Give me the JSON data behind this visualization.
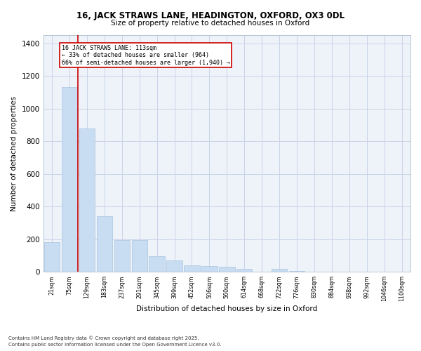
{
  "title1": "16, JACK STRAWS LANE, HEADINGTON, OXFORD, OX3 0DL",
  "title2": "Size of property relative to detached houses in Oxford",
  "xlabel": "Distribution of detached houses by size in Oxford",
  "ylabel": "Number of detached properties",
  "bar_color": "#c9ddf2",
  "bar_edge_color": "#a8c4e0",
  "grid_color": "#c8d4e8",
  "bg_color": "#eef3fa",
  "categories": [
    "21sqm",
    "75sqm",
    "129sqm",
    "183sqm",
    "237sqm",
    "291sqm",
    "345sqm",
    "399sqm",
    "452sqm",
    "506sqm",
    "560sqm",
    "614sqm",
    "668sqm",
    "722sqm",
    "776sqm",
    "830sqm",
    "884sqm",
    "938sqm",
    "992sqm",
    "1046sqm",
    "1100sqm"
  ],
  "values": [
    180,
    1130,
    880,
    340,
    195,
    195,
    95,
    70,
    40,
    35,
    30,
    20,
    3,
    17,
    5,
    0,
    0,
    0,
    0,
    0,
    0
  ],
  "ylim": [
    0,
    1450
  ],
  "yticks": [
    0,
    200,
    400,
    600,
    800,
    1000,
    1200,
    1400
  ],
  "red_line_x": 1.47,
  "annotation_text": "16 JACK STRAWS LANE: 113sqm\n← 33% of detached houses are smaller (964)\n66% of semi-detached houses are larger (1,940) →",
  "annotation_box_color": "#ffffff",
  "annotation_box_edge": "#cc0000",
  "red_line_color": "#cc0000",
  "footnote1": "Contains HM Land Registry data © Crown copyright and database right 2025.",
  "footnote2": "Contains public sector information licensed under the Open Government Licence v3.0."
}
